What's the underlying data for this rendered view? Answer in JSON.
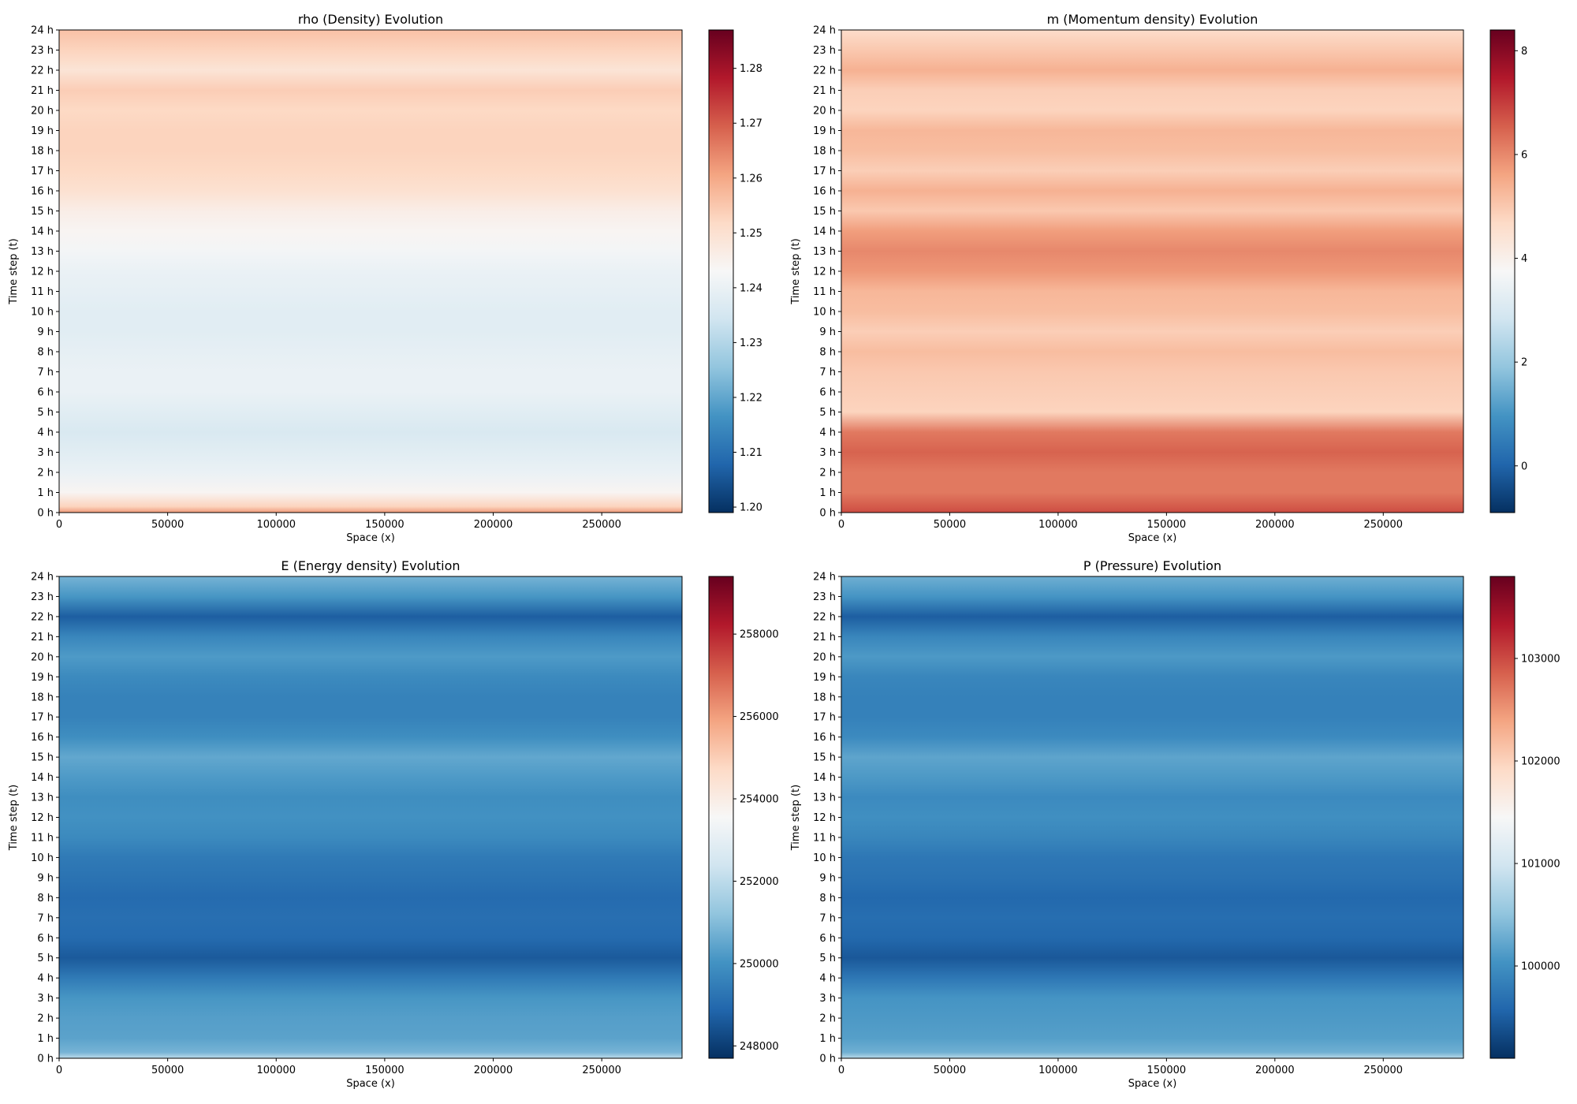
{
  "chart_data": [
    {
      "type": "heatmap",
      "title": "rho (Density) Evolution",
      "xlabel": "Space (x)",
      "ylabel": "Time step (t)",
      "xlim": [
        0,
        287000
      ],
      "xticks": [
        0,
        50000,
        100000,
        150000,
        200000,
        250000
      ],
      "ylim": [
        0,
        24
      ],
      "yticks": [
        "0 h",
        "1 h",
        "2 h",
        "3 h",
        "4 h",
        "5 h",
        "6 h",
        "7 h",
        "8 h",
        "9 h",
        "10 h",
        "11 h",
        "12 h",
        "13 h",
        "14 h",
        "15 h",
        "16 h",
        "17 h",
        "18 h",
        "19 h",
        "20 h",
        "21 h",
        "22 h",
        "23 h",
        "24 h"
      ],
      "colormap": "RdBu_r",
      "colorbar": {
        "min": 1.199,
        "max": 1.287,
        "ticks": [
          1.2,
          1.21,
          1.22,
          1.23,
          1.24,
          1.25,
          1.26,
          1.27,
          1.28
        ],
        "tick_labels": [
          "1.20",
          "1.21",
          "1.22",
          "1.23",
          "1.24",
          "1.25",
          "1.26",
          "1.27",
          "1.28"
        ]
      },
      "bands": [
        {
          "t": 0,
          "v": 1.262
        },
        {
          "t": 0.3,
          "v": 1.253
        },
        {
          "t": 1,
          "v": 1.244
        },
        {
          "t": 2,
          "v": 1.24
        },
        {
          "t": 3,
          "v": 1.238
        },
        {
          "t": 4,
          "v": 1.236
        },
        {
          "t": 5,
          "v": 1.238
        },
        {
          "t": 6,
          "v": 1.24
        },
        {
          "t": 7,
          "v": 1.24
        },
        {
          "t": 8,
          "v": 1.239
        },
        {
          "t": 9,
          "v": 1.238
        },
        {
          "t": 10,
          "v": 1.238
        },
        {
          "t": 11,
          "v": 1.239
        },
        {
          "t": 12,
          "v": 1.24
        },
        {
          "t": 13,
          "v": 1.242
        },
        {
          "t": 14,
          "v": 1.244
        },
        {
          "t": 15,
          "v": 1.246
        },
        {
          "t": 16,
          "v": 1.25
        },
        {
          "t": 17,
          "v": 1.252
        },
        {
          "t": 18,
          "v": 1.253
        },
        {
          "t": 19,
          "v": 1.253
        },
        {
          "t": 20,
          "v": 1.252
        },
        {
          "t": 21,
          "v": 1.254
        },
        {
          "t": 22,
          "v": 1.249
        },
        {
          "t": 23,
          "v": 1.253
        },
        {
          "t": 24,
          "v": 1.256
        }
      ]
    },
    {
      "type": "heatmap",
      "title": "m (Momentum density) Evolution",
      "xlabel": "Space (x)",
      "ylabel": "Time step (t)",
      "xlim": [
        0,
        287000
      ],
      "xticks": [
        0,
        50000,
        100000,
        150000,
        200000,
        250000
      ],
      "ylim": [
        0,
        24
      ],
      "yticks": [
        "0 h",
        "1 h",
        "2 h",
        "3 h",
        "4 h",
        "5 h",
        "6 h",
        "7 h",
        "8 h",
        "9 h",
        "10 h",
        "11 h",
        "12 h",
        "13 h",
        "14 h",
        "15 h",
        "16 h",
        "17 h",
        "18 h",
        "19 h",
        "20 h",
        "21 h",
        "22 h",
        "23 h",
        "24 h"
      ],
      "colormap": "RdBu_r",
      "colorbar": {
        "min": -0.9,
        "max": 8.4,
        "ticks": [
          0,
          2,
          4,
          6,
          8
        ],
        "tick_labels": [
          "0",
          "2",
          "4",
          "6",
          "8"
        ]
      },
      "bands": [
        {
          "t": 0,
          "v": 6.8
        },
        {
          "t": 0.3,
          "v": 6.6
        },
        {
          "t": 1,
          "v": 6.2
        },
        {
          "t": 2,
          "v": 6.2
        },
        {
          "t": 3,
          "v": 6.5
        },
        {
          "t": 4,
          "v": 6.2
        },
        {
          "t": 5,
          "v": 4.8
        },
        {
          "t": 6,
          "v": 4.9
        },
        {
          "t": 7,
          "v": 5.0
        },
        {
          "t": 8,
          "v": 5.2
        },
        {
          "t": 9,
          "v": 4.9
        },
        {
          "t": 10,
          "v": 5.2
        },
        {
          "t": 11,
          "v": 5.3
        },
        {
          "t": 12,
          "v": 5.8
        },
        {
          "t": 13,
          "v": 6.0
        },
        {
          "t": 14,
          "v": 5.7
        },
        {
          "t": 15,
          "v": 5.0
        },
        {
          "t": 16,
          "v": 5.4
        },
        {
          "t": 17,
          "v": 4.9
        },
        {
          "t": 18,
          "v": 5.2
        },
        {
          "t": 19,
          "v": 5.3
        },
        {
          "t": 20,
          "v": 4.8
        },
        {
          "t": 21,
          "v": 4.9
        },
        {
          "t": 22,
          "v": 5.4
        },
        {
          "t": 23,
          "v": 5.0
        },
        {
          "t": 24,
          "v": 4.6
        }
      ]
    },
    {
      "type": "heatmap",
      "title": "E (Energy density) Evolution",
      "xlabel": "Space (x)",
      "ylabel": "Time step (t)",
      "xlim": [
        0,
        287000
      ],
      "xticks": [
        0,
        50000,
        100000,
        150000,
        200000,
        250000
      ],
      "ylim": [
        0,
        24
      ],
      "yticks": [
        "0 h",
        "1 h",
        "2 h",
        "3 h",
        "4 h",
        "5 h",
        "6 h",
        "7 h",
        "8 h",
        "9 h",
        "10 h",
        "11 h",
        "12 h",
        "13 h",
        "14 h",
        "15 h",
        "16 h",
        "17 h",
        "18 h",
        "19 h",
        "20 h",
        "21 h",
        "22 h",
        "23 h",
        "24 h"
      ],
      "colormap": "RdBu_r",
      "colorbar": {
        "min": 247700,
        "max": 259400,
        "ticks": [
          248000,
          250000,
          252000,
          254000,
          256000,
          258000
        ],
        "tick_labels": [
          "248000",
          "250000",
          "252000",
          "254000",
          "256000",
          "258000"
        ]
      },
      "bands": [
        {
          "t": 0,
          "v": 252000
        },
        {
          "t": 0.3,
          "v": 250800
        },
        {
          "t": 1,
          "v": 250400
        },
        {
          "t": 2,
          "v": 250300
        },
        {
          "t": 3,
          "v": 250100
        },
        {
          "t": 4,
          "v": 249400
        },
        {
          "t": 5,
          "v": 248600
        },
        {
          "t": 6,
          "v": 249000
        },
        {
          "t": 7,
          "v": 249100
        },
        {
          "t": 8,
          "v": 249000
        },
        {
          "t": 9,
          "v": 249200
        },
        {
          "t": 10,
          "v": 249400
        },
        {
          "t": 11,
          "v": 249800
        },
        {
          "t": 12,
          "v": 250000
        },
        {
          "t": 13,
          "v": 249900
        },
        {
          "t": 14,
          "v": 250200
        },
        {
          "t": 15,
          "v": 250500
        },
        {
          "t": 16,
          "v": 249900
        },
        {
          "t": 17,
          "v": 249600
        },
        {
          "t": 18,
          "v": 249600
        },
        {
          "t": 19,
          "v": 249800
        },
        {
          "t": 20,
          "v": 250200
        },
        {
          "t": 21,
          "v": 249700
        },
        {
          "t": 22,
          "v": 248700
        },
        {
          "t": 23,
          "v": 250100
        },
        {
          "t": 24,
          "v": 250800
        }
      ]
    },
    {
      "type": "heatmap",
      "title": "P (Pressure) Evolution",
      "xlabel": "Space (x)",
      "ylabel": "Time step (t)",
      "xlim": [
        0,
        287000
      ],
      "xticks": [
        0,
        50000,
        100000,
        150000,
        200000,
        250000
      ],
      "ylim": [
        0,
        24
      ],
      "yticks": [
        "0 h",
        "1 h",
        "2 h",
        "3 h",
        "4 h",
        "5 h",
        "6 h",
        "7 h",
        "8 h",
        "9 h",
        "10 h",
        "11 h",
        "12 h",
        "13 h",
        "14 h",
        "15 h",
        "16 h",
        "17 h",
        "18 h",
        "19 h",
        "20 h",
        "21 h",
        "22 h",
        "23 h",
        "24 h"
      ],
      "colormap": "RdBu_r",
      "colorbar": {
        "min": 99100,
        "max": 103800,
        "ticks": [
          100000,
          101000,
          102000,
          103000
        ],
        "tick_labels": [
          "100000",
          "101000",
          "102000",
          "103000"
        ]
      },
      "bands": [
        {
          "t": 0,
          "v": 100800
        },
        {
          "t": 0.3,
          "v": 100300
        },
        {
          "t": 1,
          "v": 100150
        },
        {
          "t": 2,
          "v": 100100
        },
        {
          "t": 3,
          "v": 100050
        },
        {
          "t": 4,
          "v": 99750
        },
        {
          "t": 5,
          "v": 99450
        },
        {
          "t": 6,
          "v": 99600
        },
        {
          "t": 7,
          "v": 99650
        },
        {
          "t": 8,
          "v": 99600
        },
        {
          "t": 9,
          "v": 99700
        },
        {
          "t": 10,
          "v": 99750
        },
        {
          "t": 11,
          "v": 99900
        },
        {
          "t": 12,
          "v": 100000
        },
        {
          "t": 13,
          "v": 99950
        },
        {
          "t": 14,
          "v": 100100
        },
        {
          "t": 15,
          "v": 100200
        },
        {
          "t": 16,
          "v": 99950
        },
        {
          "t": 17,
          "v": 99850
        },
        {
          "t": 18,
          "v": 99850
        },
        {
          "t": 19,
          "v": 99900
        },
        {
          "t": 20,
          "v": 100100
        },
        {
          "t": 21,
          "v": 99900
        },
        {
          "t": 22,
          "v": 99500
        },
        {
          "t": 23,
          "v": 100050
        },
        {
          "t": 24,
          "v": 100300
        }
      ]
    }
  ]
}
